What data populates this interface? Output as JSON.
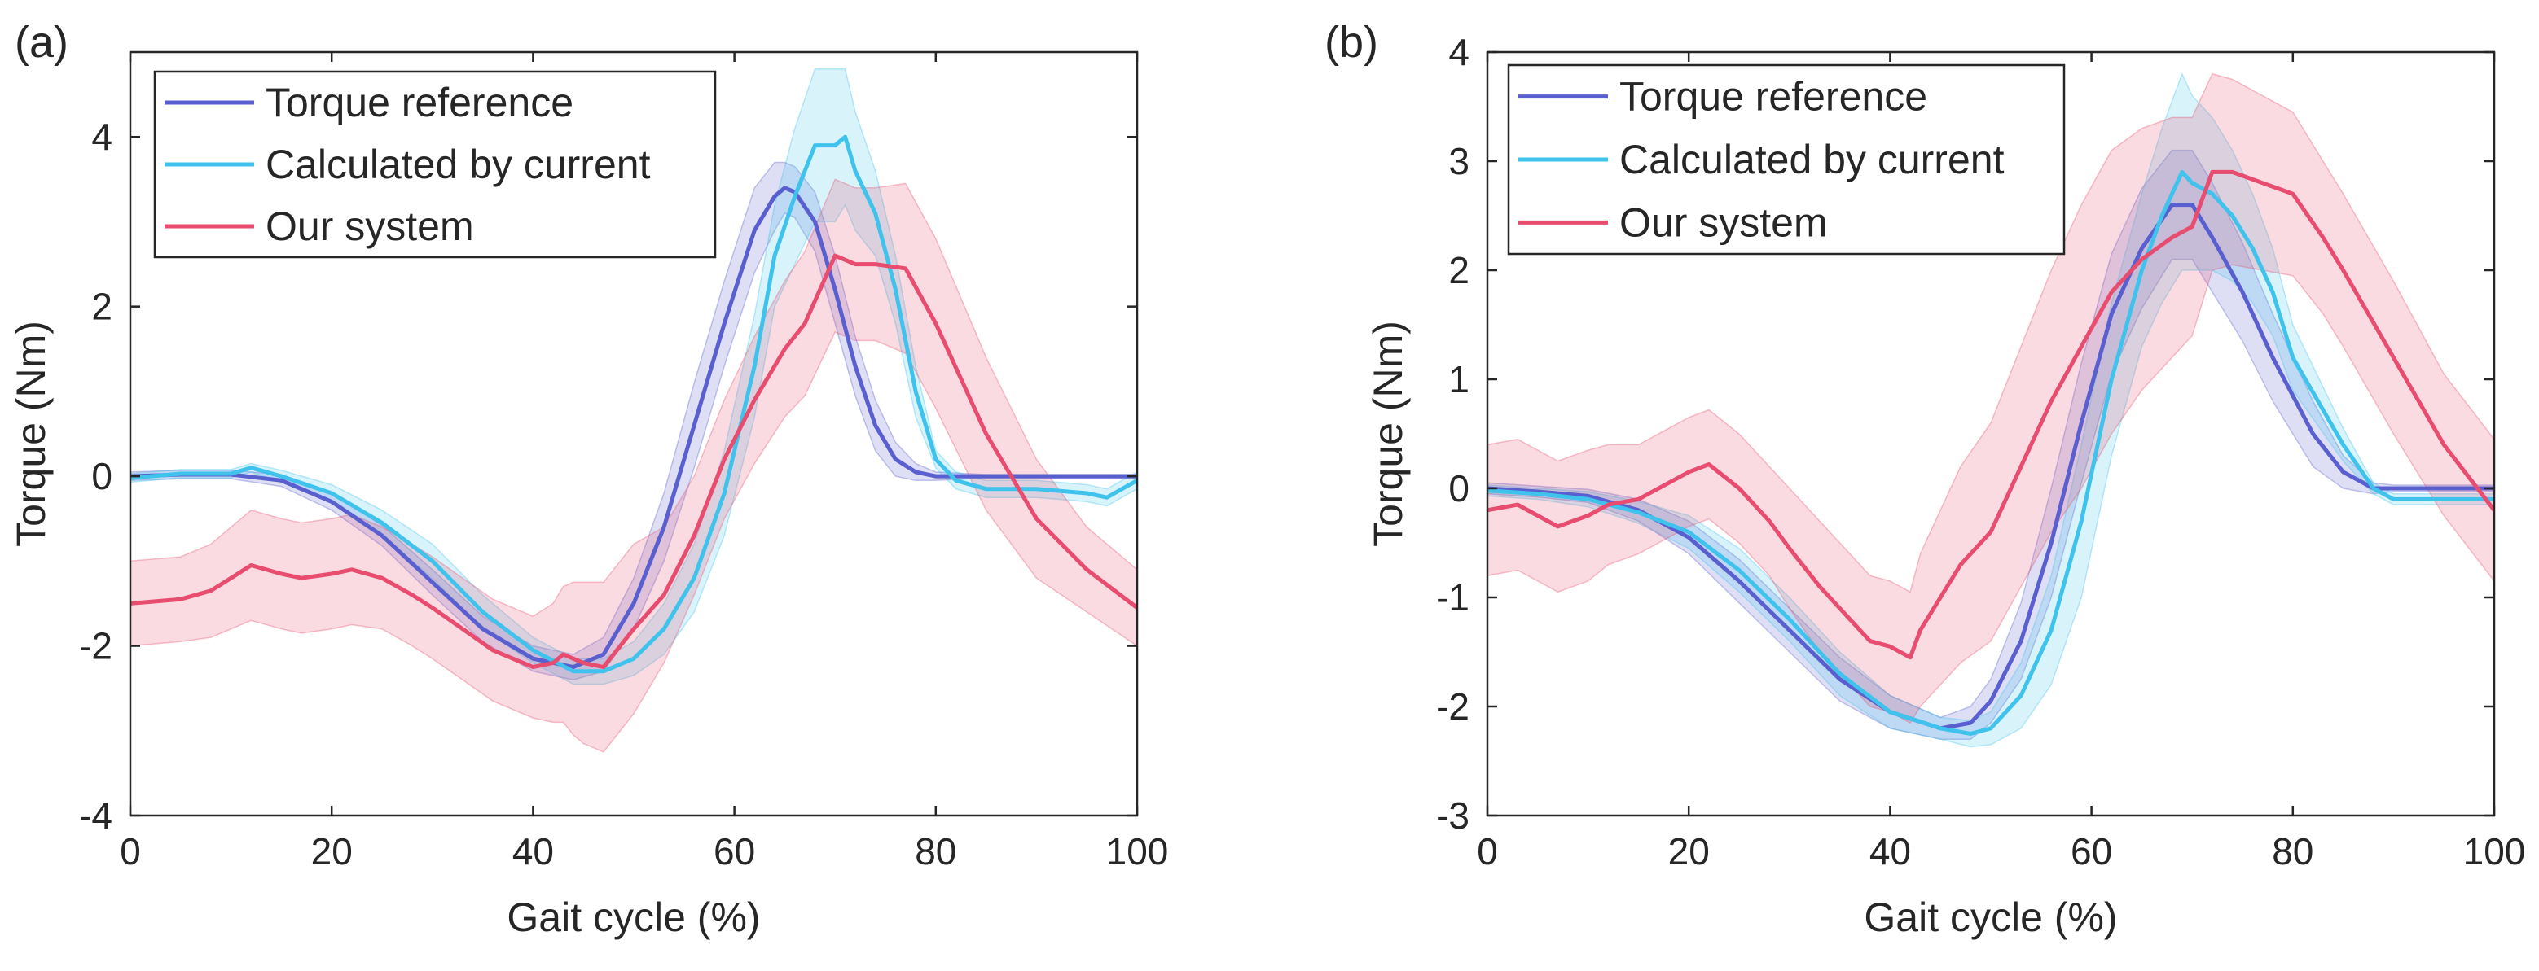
{
  "chart_data": [
    {
      "type": "line",
      "panel_label": "(a)",
      "xlabel": "Gait cycle (%)",
      "ylabel": "Torque (Nm)",
      "xlim": [
        0,
        100
      ],
      "ylim": [
        -4,
        5
      ],
      "xticks": [
        0,
        20,
        40,
        60,
        80,
        100
      ],
      "yticks": [
        -4,
        -2,
        0,
        2,
        4
      ],
      "xtick_labels": [
        "0",
        "20",
        "40",
        "60",
        "80",
        "100"
      ],
      "ytick_labels": [
        "-4",
        "-2",
        "0",
        "2",
        "4"
      ],
      "legend_position": "top-left",
      "series": [
        {
          "name": "Torque reference",
          "color": "#5a5fcf",
          "x": [
            0,
            5,
            10,
            15,
            20,
            25,
            30,
            35,
            40,
            44,
            47,
            50,
            53,
            56,
            59,
            62,
            64,
            65,
            66,
            68,
            70,
            72,
            74,
            76,
            78,
            80,
            85,
            90,
            95,
            100
          ],
          "y": [
            0,
            0.02,
            0.02,
            -0.05,
            -0.3,
            -0.7,
            -1.25,
            -1.8,
            -2.15,
            -2.25,
            -2.1,
            -1.5,
            -0.6,
            0.6,
            1.8,
            2.9,
            3.3,
            3.4,
            3.35,
            3.0,
            2.2,
            1.3,
            0.6,
            0.2,
            0.05,
            0.0,
            0.0,
            0.0,
            0.0,
            0.0
          ],
          "band_half_width": [
            0.05,
            0.05,
            0.05,
            0.07,
            0.1,
            0.12,
            0.15,
            0.15,
            0.15,
            0.15,
            0.2,
            0.3,
            0.4,
            0.5,
            0.5,
            0.5,
            0.4,
            0.3,
            0.3,
            0.35,
            0.4,
            0.35,
            0.3,
            0.2,
            0.1,
            0.05,
            0.02,
            0.02,
            0.02,
            0.02
          ]
        },
        {
          "name": "Calculated by current",
          "color": "#3fc3ec",
          "x": [
            0,
            5,
            10,
            12,
            15,
            20,
            25,
            30,
            35,
            40,
            44,
            47,
            50,
            53,
            56,
            59,
            62,
            64,
            66,
            68,
            70,
            71,
            72,
            74,
            76,
            78,
            80,
            82,
            85,
            90,
            95,
            97,
            100
          ],
          "y": [
            -0.02,
            0.03,
            0.03,
            0.1,
            0.0,
            -0.2,
            -0.55,
            -1.0,
            -1.6,
            -2.05,
            -2.3,
            -2.3,
            -2.15,
            -1.8,
            -1.2,
            -0.2,
            1.3,
            2.6,
            3.3,
            3.9,
            3.9,
            4.0,
            3.6,
            3.1,
            2.2,
            1.0,
            0.2,
            -0.05,
            -0.15,
            -0.15,
            -0.2,
            -0.25,
            -0.05
          ],
          "band_half_width": [
            0.05,
            0.05,
            0.05,
            0.05,
            0.07,
            0.1,
            0.15,
            0.2,
            0.2,
            0.15,
            0.15,
            0.15,
            0.2,
            0.3,
            0.4,
            0.5,
            0.6,
            0.6,
            0.8,
            0.9,
            0.9,
            0.8,
            0.7,
            0.5,
            0.4,
            0.3,
            0.1,
            0.1,
            0.1,
            0.1,
            0.1,
            0.1,
            0.1
          ]
        },
        {
          "name": "Our system",
          "color": "#e84c6e",
          "x": [
            0,
            5,
            8,
            10,
            12,
            15,
            17,
            20,
            22,
            25,
            28,
            30,
            33,
            36,
            40,
            42,
            43,
            44,
            45,
            47,
            50,
            53,
            56,
            59,
            62,
            65,
            67,
            70,
            72,
            74,
            77,
            80,
            85,
            90,
            95,
            100
          ],
          "y": [
            -1.5,
            -1.45,
            -1.35,
            -1.2,
            -1.05,
            -1.15,
            -1.2,
            -1.15,
            -1.1,
            -1.2,
            -1.4,
            -1.55,
            -1.8,
            -2.05,
            -2.25,
            -2.2,
            -2.1,
            -2.15,
            -2.2,
            -2.25,
            -1.8,
            -1.4,
            -0.7,
            0.2,
            0.9,
            1.5,
            1.8,
            2.6,
            2.5,
            2.5,
            2.45,
            1.8,
            0.5,
            -0.5,
            -1.1,
            -1.55
          ],
          "band_half_width": [
            0.5,
            0.5,
            0.55,
            0.6,
            0.65,
            0.65,
            0.65,
            0.65,
            0.65,
            0.6,
            0.6,
            0.6,
            0.6,
            0.6,
            0.6,
            0.7,
            0.8,
            0.9,
            0.95,
            1.0,
            1.0,
            0.8,
            0.7,
            0.7,
            0.75,
            0.8,
            0.85,
            0.9,
            0.9,
            0.9,
            1.0,
            1.0,
            0.9,
            0.7,
            0.5,
            0.45
          ]
        }
      ]
    },
    {
      "type": "line",
      "panel_label": "(b)",
      "xlabel": "Gait cycle (%)",
      "ylabel": "Torque (Nm)",
      "xlim": [
        0,
        100
      ],
      "ylim": [
        -3,
        4
      ],
      "xticks": [
        0,
        20,
        40,
        60,
        80,
        100
      ],
      "yticks": [
        -3,
        -2,
        -1,
        0,
        1,
        2,
        3,
        4
      ],
      "xtick_labels": [
        "0",
        "20",
        "40",
        "60",
        "80",
        "100"
      ],
      "ytick_labels": [
        "-3",
        "-2",
        "-1",
        "0",
        "1",
        "2",
        "3",
        "4"
      ],
      "legend_position": "top-left",
      "series": [
        {
          "name": "Torque reference",
          "color": "#5a5fcf",
          "x": [
            0,
            5,
            10,
            15,
            20,
            25,
            30,
            35,
            40,
            45,
            48,
            50,
            53,
            56,
            59,
            62,
            65,
            68,
            70,
            72,
            75,
            78,
            82,
            85,
            88,
            90,
            95,
            100
          ],
          "y": [
            0,
            -0.03,
            -0.07,
            -0.2,
            -0.45,
            -0.85,
            -1.3,
            -1.75,
            -2.05,
            -2.2,
            -2.15,
            -1.95,
            -1.4,
            -0.5,
            0.6,
            1.6,
            2.2,
            2.6,
            2.6,
            2.3,
            1.8,
            1.2,
            0.5,
            0.15,
            0.0,
            0.0,
            0.0,
            0.0
          ],
          "band_half_width": [
            0.05,
            0.05,
            0.06,
            0.1,
            0.15,
            0.2,
            0.2,
            0.2,
            0.15,
            0.1,
            0.15,
            0.2,
            0.35,
            0.5,
            0.55,
            0.55,
            0.55,
            0.5,
            0.5,
            0.5,
            0.45,
            0.4,
            0.3,
            0.15,
            0.05,
            0.03,
            0.03,
            0.03
          ]
        },
        {
          "name": "Calculated by current",
          "color": "#3fc3ec",
          "x": [
            0,
            5,
            10,
            15,
            20,
            25,
            30,
            35,
            40,
            45,
            48,
            50,
            53,
            56,
            59,
            62,
            65,
            67,
            69,
            70,
            72,
            74,
            76,
            78,
            80,
            85,
            88,
            90,
            95,
            100
          ],
          "y": [
            -0.02,
            -0.05,
            -0.1,
            -0.22,
            -0.4,
            -0.75,
            -1.2,
            -1.7,
            -2.05,
            -2.2,
            -2.25,
            -2.2,
            -1.9,
            -1.3,
            -0.3,
            1.0,
            2.0,
            2.5,
            2.9,
            2.8,
            2.7,
            2.5,
            2.2,
            1.8,
            1.2,
            0.4,
            0.0,
            -0.1,
            -0.1,
            -0.1
          ],
          "band_half_width": [
            0.05,
            0.05,
            0.07,
            0.1,
            0.15,
            0.2,
            0.2,
            0.2,
            0.15,
            0.1,
            0.12,
            0.15,
            0.3,
            0.5,
            0.7,
            0.7,
            0.7,
            0.8,
            0.9,
            0.8,
            0.7,
            0.6,
            0.5,
            0.4,
            0.3,
            0.15,
            0.05,
            0.05,
            0.05,
            0.05
          ]
        },
        {
          "name": "Our system",
          "color": "#e84c6e",
          "x": [
            0,
            3,
            5,
            7,
            10,
            12,
            15,
            18,
            20,
            22,
            25,
            28,
            30,
            33,
            36,
            38,
            40,
            42,
            43,
            45,
            47,
            50,
            53,
            56,
            59,
            62,
            65,
            68,
            70,
            72,
            74,
            77,
            80,
            83,
            85,
            90,
            95,
            100
          ],
          "y": [
            -0.2,
            -0.15,
            -0.25,
            -0.35,
            -0.25,
            -0.15,
            -0.1,
            0.05,
            0.15,
            0.22,
            0.0,
            -0.3,
            -0.55,
            -0.9,
            -1.2,
            -1.4,
            -1.45,
            -1.55,
            -1.3,
            -1.0,
            -0.7,
            -0.4,
            0.2,
            0.8,
            1.3,
            1.8,
            2.1,
            2.3,
            2.4,
            2.9,
            2.9,
            2.8,
            2.7,
            2.3,
            2.0,
            1.2,
            0.4,
            -0.2
          ],
          "band_half_width": [
            0.6,
            0.6,
            0.6,
            0.6,
            0.6,
            0.55,
            0.5,
            0.5,
            0.5,
            0.5,
            0.5,
            0.5,
            0.55,
            0.6,
            0.6,
            0.6,
            0.6,
            0.6,
            0.7,
            0.8,
            0.9,
            1.0,
            1.1,
            1.2,
            1.3,
            1.3,
            1.2,
            1.1,
            1.0,
            0.9,
            0.85,
            0.8,
            0.75,
            0.7,
            0.7,
            0.7,
            0.65,
            0.65
          ]
        }
      ]
    }
  ]
}
